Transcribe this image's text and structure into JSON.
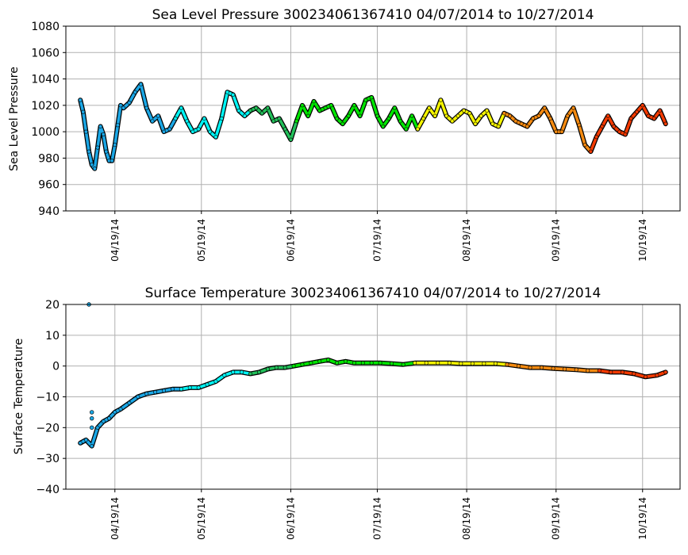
{
  "chart_data": [
    {
      "type": "line",
      "title": "Sea Level Pressure 300234061367410  04/07/2014 to 10/27/2014",
      "xlabel": "",
      "ylabel": "Sea Level Pressure",
      "ylim": [
        940,
        1080
      ],
      "yticks": [
        "940",
        "960",
        "980",
        "1000",
        "1020",
        "1040",
        "1060",
        "1080"
      ],
      "xtick_labels": [
        "04/19/14",
        "05/19/14",
        "06/19/14",
        "07/19/14",
        "08/19/14",
        "09/19/14",
        "10/19/14"
      ],
      "grid": true,
      "series": [
        {
          "x": [
            "04/07/14",
            "04/08/14",
            "04/09/14",
            "04/10/14",
            "04/11/14",
            "04/12/14",
            "04/13/14",
            "04/14/14",
            "04/15/14",
            "04/16/14",
            "04/17/14",
            "04/18/14",
            "04/19/14",
            "04/20/14",
            "04/21/14",
            "04/22/14",
            "04/24/14",
            "04/26/14",
            "04/28/14",
            "04/30/14",
            "05/02/14",
            "05/04/14",
            "05/06/14",
            "05/08/14",
            "05/10/14",
            "05/12/14",
            "05/14/14",
            "05/16/14",
            "05/18/14",
            "05/20/14",
            "05/22/14",
            "05/24/14",
            "05/26/14",
            "05/28/14",
            "05/30/14",
            "06/01/14",
            "06/03/14",
            "06/05/14",
            "06/07/14",
            "06/09/14",
            "06/11/14",
            "06/13/14",
            "06/15/14",
            "06/17/14",
            "06/19/14",
            "06/21/14",
            "06/23/14",
            "06/25/14",
            "06/27/14",
            "06/29/14",
            "07/01/14",
            "07/03/14",
            "07/05/14",
            "07/07/14",
            "07/09/14",
            "07/11/14",
            "07/13/14",
            "07/15/14",
            "07/17/14",
            "07/19/14",
            "07/21/14",
            "07/23/14",
            "07/25/14",
            "07/27/14",
            "07/29/14",
            "07/31/14",
            "08/02/14",
            "08/04/14",
            "08/06/14",
            "08/08/14",
            "08/10/14",
            "08/12/14",
            "08/14/14",
            "08/16/14",
            "08/18/14",
            "08/20/14",
            "08/22/14",
            "08/24/14",
            "08/26/14",
            "08/28/14",
            "08/30/14",
            "09/01/14",
            "09/03/14",
            "09/05/14",
            "09/07/14",
            "09/09/14",
            "09/11/14",
            "09/13/14",
            "09/15/14",
            "09/17/14",
            "09/19/14",
            "09/21/14",
            "09/23/14",
            "09/25/14",
            "09/27/14",
            "09/29/14",
            "10/01/14",
            "10/03/14",
            "10/05/14",
            "10/07/14",
            "10/09/14",
            "10/11/14",
            "10/13/14",
            "10/15/14",
            "10/17/14",
            "10/19/14",
            "10/21/14",
            "10/23/14",
            "10/25/14",
            "10/27/14"
          ],
          "values": [
            1024,
            1015,
            1000,
            985,
            975,
            972,
            988,
            1004,
            998,
            985,
            978,
            978,
            990,
            1005,
            1020,
            1018,
            1022,
            1030,
            1036,
            1018,
            1008,
            1012,
            1000,
            1002,
            1010,
            1018,
            1008,
            1000,
            1002,
            1010,
            1000,
            996,
            1010,
            1030,
            1028,
            1016,
            1012,
            1016,
            1018,
            1014,
            1018,
            1008,
            1010,
            1002,
            994,
            1008,
            1020,
            1012,
            1023,
            1016,
            1018,
            1020,
            1010,
            1006,
            1012,
            1020,
            1012,
            1024,
            1026,
            1012,
            1004,
            1010,
            1018,
            1008,
            1002,
            1012,
            1002,
            1010,
            1018,
            1012,
            1024,
            1012,
            1008,
            1012,
            1016,
            1014,
            1006,
            1012,
            1016,
            1006,
            1004,
            1014,
            1012,
            1008,
            1006,
            1004,
            1010,
            1012,
            1018,
            1010,
            1000,
            1000,
            1012,
            1018,
            1005,
            990,
            985,
            996,
            1004,
            1012,
            1004,
            1000,
            998,
            1010,
            1015,
            1020,
            1012,
            1010,
            1016,
            1006
          ]
        }
      ]
    },
    {
      "type": "line",
      "title": "Surface Temperature 300234061367410  04/07/2014 to 10/27/2014",
      "xlabel": "",
      "ylabel": "Surface Temperature",
      "ylim": [
        -40,
        20
      ],
      "yticks": [
        "−40",
        "−30",
        "−20",
        "−10",
        "0",
        "10",
        "20"
      ],
      "xtick_labels": [
        "04/19/14",
        "05/19/14",
        "06/19/14",
        "07/19/14",
        "08/19/14",
        "09/19/14",
        "10/19/14"
      ],
      "grid": true,
      "series": [
        {
          "x": [
            "04/07/14",
            "04/09/14",
            "04/11/14",
            "04/13/14",
            "04/15/14",
            "04/17/14",
            "04/19/14",
            "04/21/14",
            "04/24/14",
            "04/27/14",
            "04/30/14",
            "05/03/14",
            "05/06/14",
            "05/09/14",
            "05/12/14",
            "05/15/14",
            "05/18/14",
            "05/21/14",
            "05/24/14",
            "05/27/14",
            "05/30/14",
            "06/02/14",
            "06/05/14",
            "06/08/14",
            "06/11/14",
            "06/14/14",
            "06/17/14",
            "06/20/14",
            "06/23/14",
            "06/26/14",
            "06/29/14",
            "07/02/14",
            "07/05/14",
            "07/08/14",
            "07/11/14",
            "07/14/14",
            "07/17/14",
            "07/20/14",
            "07/24/14",
            "07/28/14",
            "08/01/14",
            "08/05/14",
            "08/09/14",
            "08/13/14",
            "08/17/14",
            "08/21/14",
            "08/25/14",
            "08/29/14",
            "09/02/14",
            "09/06/14",
            "09/10/14",
            "09/14/14",
            "09/18/14",
            "09/22/14",
            "09/26/14",
            "09/30/14",
            "10/04/14",
            "10/08/14",
            "10/12/14",
            "10/16/14",
            "10/20/14",
            "10/24/14",
            "10/27/14"
          ],
          "values": [
            -25,
            -24,
            -26,
            -20,
            -18,
            -17,
            -15,
            -14,
            -12,
            -10,
            -9,
            -8.5,
            -8,
            -7.5,
            -7.5,
            -7,
            -7,
            -6,
            -5,
            -3,
            -2,
            -2,
            -2.5,
            -2,
            -1,
            -0.5,
            -0.5,
            0,
            0.5,
            1,
            1.5,
            2,
            1,
            1.5,
            1,
            1,
            1,
            1,
            0.8,
            0.5,
            1,
            1,
            1,
            1,
            0.8,
            0.8,
            0.8,
            0.8,
            0.5,
            0,
            -0.5,
            -0.5,
            -0.8,
            -1,
            -1.2,
            -1.5,
            -1.5,
            -2,
            -2,
            -2.5,
            -3.5,
            -3,
            -2
          ]
        }
      ],
      "outlier_points": [
        {
          "x": "04/10/14",
          "value": 20
        },
        {
          "x": "04/11/14",
          "value": -15
        },
        {
          "x": "04/11/14",
          "value": -17
        },
        {
          "x": "04/11/14",
          "value": -20
        }
      ]
    }
  ],
  "colors": {
    "early": "#1aa7e6",
    "cyan": "#00f5f5",
    "teal": "#22c05a",
    "green": "#00e600",
    "yellow": "#f5f500",
    "orange": "#f58a10",
    "red": "#f53a00",
    "outline": "#000000",
    "grid": "#b0b0b0"
  }
}
